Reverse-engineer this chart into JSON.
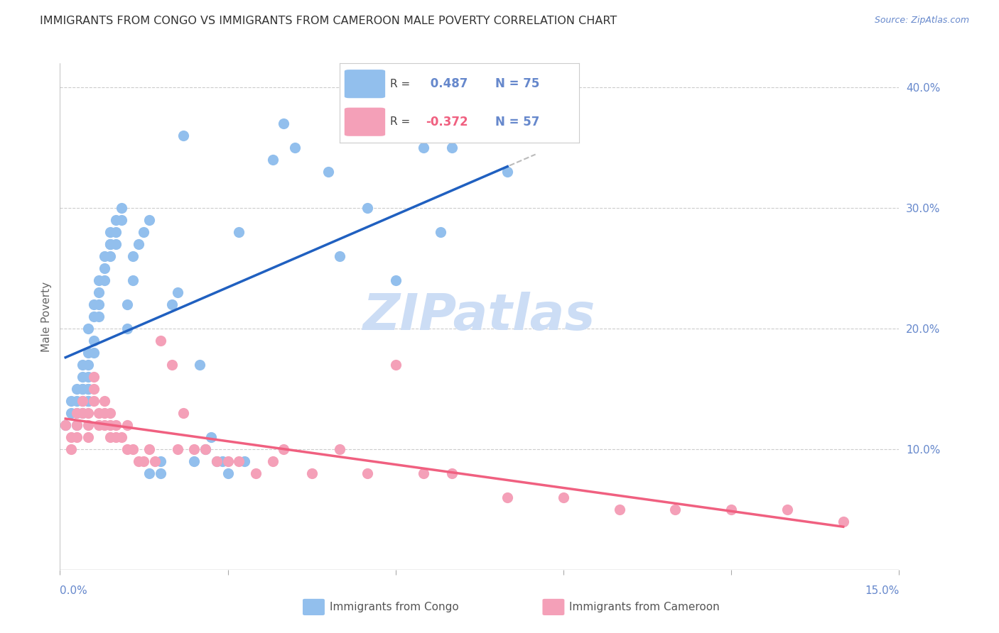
{
  "title": "IMMIGRANTS FROM CONGO VS IMMIGRANTS FROM CAMEROON MALE POVERTY CORRELATION CHART",
  "source": "Source: ZipAtlas.com",
  "ylabel": "Male Poverty",
  "right_yticks": [
    0.1,
    0.2,
    0.3,
    0.4
  ],
  "right_yticklabels": [
    "10.0%",
    "20.0%",
    "30.0%",
    "40.0%"
  ],
  "xlim": [
    0.0,
    0.15
  ],
  "ylim": [
    0.0,
    0.42
  ],
  "congo_R": 0.487,
  "congo_N": 75,
  "cameroon_R": -0.372,
  "cameroon_N": 57,
  "congo_color": "#92BFED",
  "cameroon_color": "#F4A0B8",
  "congo_line_color": "#2060C0",
  "cameroon_line_color": "#F06080",
  "trend_line_color_dashed": "#BBBBBB",
  "background_color": "#FFFFFF",
  "grid_color": "#CCCCCC",
  "axis_color": "#6688CC",
  "title_color": "#333333",
  "watermark_color": "#CCDDF5",
  "congo_x": [
    0.001,
    0.002,
    0.002,
    0.003,
    0.003,
    0.003,
    0.003,
    0.004,
    0.004,
    0.004,
    0.004,
    0.004,
    0.004,
    0.005,
    0.005,
    0.005,
    0.005,
    0.005,
    0.005,
    0.005,
    0.005,
    0.006,
    0.006,
    0.006,
    0.006,
    0.007,
    0.007,
    0.007,
    0.007,
    0.008,
    0.008,
    0.008,
    0.009,
    0.009,
    0.009,
    0.009,
    0.01,
    0.01,
    0.01,
    0.011,
    0.011,
    0.012,
    0.012,
    0.013,
    0.013,
    0.014,
    0.015,
    0.016,
    0.016,
    0.018,
    0.018,
    0.02,
    0.021,
    0.022,
    0.024,
    0.025,
    0.026,
    0.027,
    0.028,
    0.029,
    0.03,
    0.032,
    0.033,
    0.038,
    0.04,
    0.042,
    0.048,
    0.05,
    0.055,
    0.06,
    0.065,
    0.068,
    0.07,
    0.075,
    0.08
  ],
  "congo_y": [
    0.12,
    0.14,
    0.13,
    0.15,
    0.14,
    0.13,
    0.12,
    0.17,
    0.16,
    0.15,
    0.15,
    0.14,
    0.13,
    0.2,
    0.18,
    0.17,
    0.16,
    0.15,
    0.15,
    0.14,
    0.14,
    0.22,
    0.21,
    0.19,
    0.18,
    0.24,
    0.23,
    0.22,
    0.21,
    0.26,
    0.25,
    0.24,
    0.28,
    0.27,
    0.27,
    0.26,
    0.29,
    0.28,
    0.27,
    0.3,
    0.29,
    0.22,
    0.2,
    0.26,
    0.24,
    0.27,
    0.28,
    0.29,
    0.08,
    0.09,
    0.08,
    0.22,
    0.23,
    0.36,
    0.09,
    0.17,
    0.1,
    0.11,
    0.09,
    0.09,
    0.08,
    0.28,
    0.09,
    0.34,
    0.37,
    0.35,
    0.33,
    0.26,
    0.3,
    0.24,
    0.35,
    0.28,
    0.35,
    0.36,
    0.33
  ],
  "cameroon_x": [
    0.001,
    0.002,
    0.002,
    0.003,
    0.003,
    0.003,
    0.004,
    0.004,
    0.005,
    0.005,
    0.005,
    0.006,
    0.006,
    0.006,
    0.007,
    0.007,
    0.008,
    0.008,
    0.008,
    0.009,
    0.009,
    0.009,
    0.01,
    0.01,
    0.011,
    0.012,
    0.012,
    0.013,
    0.014,
    0.015,
    0.016,
    0.017,
    0.018,
    0.02,
    0.021,
    0.022,
    0.024,
    0.026,
    0.028,
    0.03,
    0.032,
    0.035,
    0.038,
    0.04,
    0.045,
    0.05,
    0.055,
    0.06,
    0.065,
    0.07,
    0.08,
    0.09,
    0.1,
    0.11,
    0.12,
    0.13,
    0.14
  ],
  "cameroon_y": [
    0.12,
    0.11,
    0.1,
    0.13,
    0.12,
    0.11,
    0.14,
    0.13,
    0.13,
    0.12,
    0.11,
    0.16,
    0.15,
    0.14,
    0.13,
    0.12,
    0.14,
    0.13,
    0.12,
    0.13,
    0.12,
    0.11,
    0.12,
    0.11,
    0.11,
    0.12,
    0.1,
    0.1,
    0.09,
    0.09,
    0.1,
    0.09,
    0.19,
    0.17,
    0.1,
    0.13,
    0.1,
    0.1,
    0.09,
    0.09,
    0.09,
    0.08,
    0.09,
    0.1,
    0.08,
    0.1,
    0.08,
    0.17,
    0.08,
    0.08,
    0.06,
    0.06,
    0.05,
    0.05,
    0.05,
    0.05,
    0.04
  ]
}
